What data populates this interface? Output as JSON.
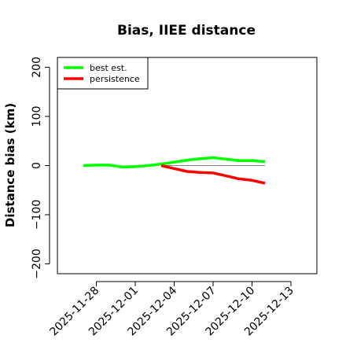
{
  "chart_data": {
    "type": "line",
    "title": "Bias, IIEE distance",
    "xlabel": "",
    "ylabel": "Distance bias (km)",
    "ylim": [
      -220,
      220
    ],
    "yticks": [
      -200,
      -100,
      0,
      100,
      200
    ],
    "xlim": [
      "2025-11-25",
      "2025-12-15"
    ],
    "xticks": [
      "2025-11-28",
      "2025-12-01",
      "2025-12-04",
      "2025-12-07",
      "2025-12-10",
      "2025-12-13"
    ],
    "reference_line": {
      "y": 0,
      "from": "2025-12-03",
      "to": "2025-12-11",
      "color": "#808080"
    },
    "legend_position": "top-left",
    "series": [
      {
        "name": "best est.",
        "color": "#00ff00",
        "x": [
          "2025-11-27",
          "2025-11-28",
          "2025-11-29",
          "2025-11-30",
          "2025-12-01",
          "2025-12-02",
          "2025-12-03",
          "2025-12-04",
          "2025-12-05",
          "2025-12-06",
          "2025-12-07",
          "2025-12-08",
          "2025-12-09",
          "2025-12-10",
          "2025-12-11"
        ],
        "values": [
          0,
          1,
          1,
          -3,
          -2,
          0,
          3,
          7,
          11,
          14,
          16,
          13,
          10,
          10,
          8
        ]
      },
      {
        "name": "persistence",
        "color": "#ff0000",
        "x": [
          "2025-12-03",
          "2025-12-04",
          "2025-12-05",
          "2025-12-06",
          "2025-12-07",
          "2025-12-08",
          "2025-12-09",
          "2025-12-10",
          "2025-12-11"
        ],
        "values": [
          0,
          -6,
          -12,
          -14,
          -15,
          -21,
          -27,
          -30,
          -36
        ]
      }
    ]
  }
}
